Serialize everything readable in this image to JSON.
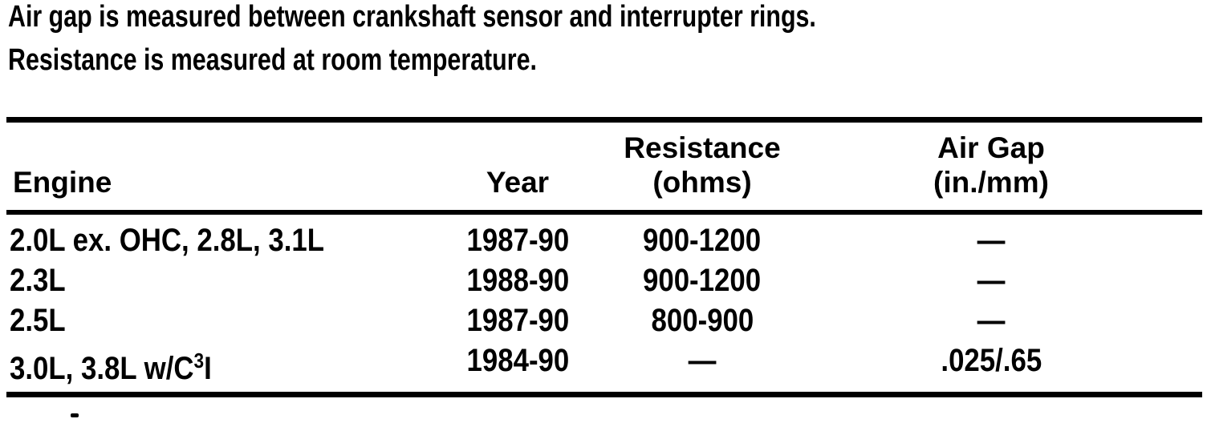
{
  "colors": {
    "text": "#000000",
    "background": "#ffffff"
  },
  "intro": {
    "line1": "Air gap is measured between crankshaft sensor and interrupter rings.",
    "line2": "Resistance is measured at room temperature."
  },
  "table": {
    "headers": {
      "engine": "Engine",
      "year": "Year",
      "resistance_line1": "Resistance",
      "resistance_line2": "(ohms)",
      "air_gap_line1": "Air Gap",
      "air_gap_line2": "(in./mm)"
    },
    "rows": [
      {
        "engine": "2.0L ex. OHC, 2.8L, 3.1L",
        "year": "1987-90",
        "resistance": "900-1200",
        "air_gap": "—"
      },
      {
        "engine": "2.3L",
        "year": "1988-90",
        "resistance": "900-1200",
        "air_gap": "—"
      },
      {
        "engine": "2.5L",
        "year": "1987-90",
        "resistance": "800-900",
        "air_gap": "—"
      },
      {
        "engine_base": "3.0L, 3.8L w/C",
        "engine_sup": "3",
        "engine_tail": "I",
        "year": "1984-90",
        "resistance": "—",
        "air_gap": ".025/.65"
      }
    ]
  }
}
